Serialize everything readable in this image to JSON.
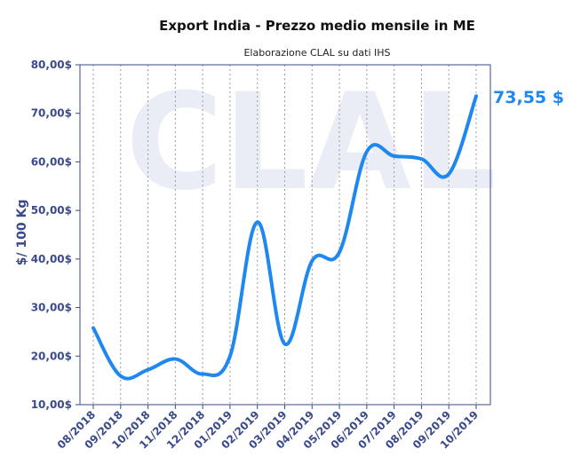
{
  "chart_data": {
    "type": "line",
    "title": "Export India - Prezzo medio mensile in ME",
    "subtitle": "Elaborazione CLAL su dati IHS",
    "ylabel": "$/ 100 Kg",
    "xlabel": "",
    "watermark": "CLAL",
    "ylim": [
      10,
      80
    ],
    "yticks": [
      10,
      20,
      30,
      40,
      50,
      60,
      70,
      80
    ],
    "ytick_labels": [
      "10,00$",
      "20,00$",
      "30,00$",
      "40,00$",
      "50,00$",
      "60,00$",
      "70,00$",
      "80,00$"
    ],
    "categories": [
      "08/2018",
      "09/2018",
      "10/2018",
      "11/2018",
      "12/2018",
      "01/2019",
      "02/2019",
      "03/2019",
      "04/2019",
      "05/2019",
      "06/2019",
      "07/2019",
      "08/2019",
      "09/2019",
      "10/2019"
    ],
    "series": [
      {
        "values": [
          25.8,
          15.9,
          17.2,
          19.4,
          16.3,
          20.0,
          47.6,
          22.5,
          39.6,
          41.4,
          62.1,
          61.2,
          60.6,
          57.5,
          73.55
        ],
        "color": "#1e88f0"
      }
    ],
    "last_value_label": "73,55 $",
    "grid": "vertical-dashed",
    "colors": {
      "line": "#1e88f0",
      "axis": "#3a4a8a",
      "label": "#1e88f0",
      "grid": "#9a9a9a"
    }
  }
}
